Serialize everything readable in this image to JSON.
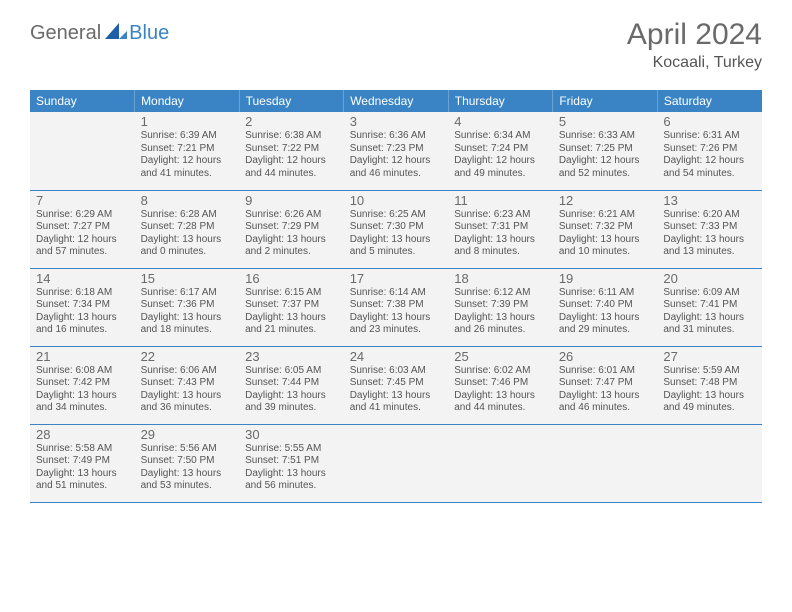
{
  "logo": {
    "text1": "General",
    "text2": "Blue"
  },
  "title": {
    "month": "April 2024",
    "location": "Kocaali, Turkey"
  },
  "weekdaysColors": {
    "header_bg": "#3a84c6",
    "header_fg": "#ffffff"
  },
  "weekdays": [
    "Sunday",
    "Monday",
    "Tuesday",
    "Wednesday",
    "Thursday",
    "Friday",
    "Saturday"
  ],
  "weeks": [
    [
      null,
      {
        "d": "1",
        "sr": "6:39 AM",
        "ss": "7:21 PM",
        "dl": "12 hours and 41 minutes."
      },
      {
        "d": "2",
        "sr": "6:38 AM",
        "ss": "7:22 PM",
        "dl": "12 hours and 44 minutes."
      },
      {
        "d": "3",
        "sr": "6:36 AM",
        "ss": "7:23 PM",
        "dl": "12 hours and 46 minutes."
      },
      {
        "d": "4",
        "sr": "6:34 AM",
        "ss": "7:24 PM",
        "dl": "12 hours and 49 minutes."
      },
      {
        "d": "5",
        "sr": "6:33 AM",
        "ss": "7:25 PM",
        "dl": "12 hours and 52 minutes."
      },
      {
        "d": "6",
        "sr": "6:31 AM",
        "ss": "7:26 PM",
        "dl": "12 hours and 54 minutes."
      }
    ],
    [
      {
        "d": "7",
        "sr": "6:29 AM",
        "ss": "7:27 PM",
        "dl": "12 hours and 57 minutes."
      },
      {
        "d": "8",
        "sr": "6:28 AM",
        "ss": "7:28 PM",
        "dl": "13 hours and 0 minutes."
      },
      {
        "d": "9",
        "sr": "6:26 AM",
        "ss": "7:29 PM",
        "dl": "13 hours and 2 minutes."
      },
      {
        "d": "10",
        "sr": "6:25 AM",
        "ss": "7:30 PM",
        "dl": "13 hours and 5 minutes."
      },
      {
        "d": "11",
        "sr": "6:23 AM",
        "ss": "7:31 PM",
        "dl": "13 hours and 8 minutes."
      },
      {
        "d": "12",
        "sr": "6:21 AM",
        "ss": "7:32 PM",
        "dl": "13 hours and 10 minutes."
      },
      {
        "d": "13",
        "sr": "6:20 AM",
        "ss": "7:33 PM",
        "dl": "13 hours and 13 minutes."
      }
    ],
    [
      {
        "d": "14",
        "sr": "6:18 AM",
        "ss": "7:34 PM",
        "dl": "13 hours and 16 minutes."
      },
      {
        "d": "15",
        "sr": "6:17 AM",
        "ss": "7:36 PM",
        "dl": "13 hours and 18 minutes."
      },
      {
        "d": "16",
        "sr": "6:15 AM",
        "ss": "7:37 PM",
        "dl": "13 hours and 21 minutes."
      },
      {
        "d": "17",
        "sr": "6:14 AM",
        "ss": "7:38 PM",
        "dl": "13 hours and 23 minutes."
      },
      {
        "d": "18",
        "sr": "6:12 AM",
        "ss": "7:39 PM",
        "dl": "13 hours and 26 minutes."
      },
      {
        "d": "19",
        "sr": "6:11 AM",
        "ss": "7:40 PM",
        "dl": "13 hours and 29 minutes."
      },
      {
        "d": "20",
        "sr": "6:09 AM",
        "ss": "7:41 PM",
        "dl": "13 hours and 31 minutes."
      }
    ],
    [
      {
        "d": "21",
        "sr": "6:08 AM",
        "ss": "7:42 PM",
        "dl": "13 hours and 34 minutes."
      },
      {
        "d": "22",
        "sr": "6:06 AM",
        "ss": "7:43 PM",
        "dl": "13 hours and 36 minutes."
      },
      {
        "d": "23",
        "sr": "6:05 AM",
        "ss": "7:44 PM",
        "dl": "13 hours and 39 minutes."
      },
      {
        "d": "24",
        "sr": "6:03 AM",
        "ss": "7:45 PM",
        "dl": "13 hours and 41 minutes."
      },
      {
        "d": "25",
        "sr": "6:02 AM",
        "ss": "7:46 PM",
        "dl": "13 hours and 44 minutes."
      },
      {
        "d": "26",
        "sr": "6:01 AM",
        "ss": "7:47 PM",
        "dl": "13 hours and 46 minutes."
      },
      {
        "d": "27",
        "sr": "5:59 AM",
        "ss": "7:48 PM",
        "dl": "13 hours and 49 minutes."
      }
    ],
    [
      {
        "d": "28",
        "sr": "5:58 AM",
        "ss": "7:49 PM",
        "dl": "13 hours and 51 minutes."
      },
      {
        "d": "29",
        "sr": "5:56 AM",
        "ss": "7:50 PM",
        "dl": "13 hours and 53 minutes."
      },
      {
        "d": "30",
        "sr": "5:55 AM",
        "ss": "7:51 PM",
        "dl": "13 hours and 56 minutes."
      },
      null,
      null,
      null,
      null
    ]
  ],
  "labels": {
    "sunrise": "Sunrise:",
    "sunset": "Sunset:",
    "daylight": "Daylight:"
  }
}
